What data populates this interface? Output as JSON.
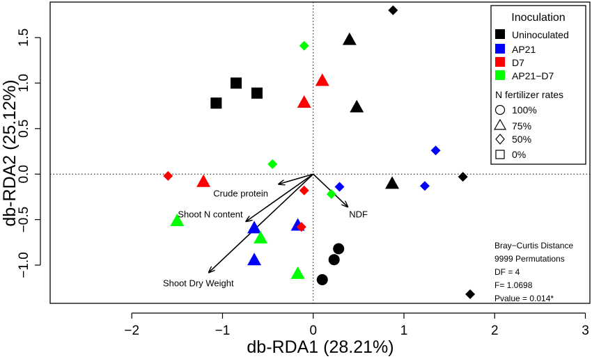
{
  "chart_data": {
    "type": "scatter",
    "xlabel": "db-RDA1 (28.21%)",
    "ylabel": "db-RDA2 (25.12%)",
    "xlim": [
      -2.9,
      3.05
    ],
    "ylim": [
      -1.42,
      1.89
    ],
    "xticks": [
      -2,
      -1,
      0,
      1,
      2,
      3
    ],
    "yticks": [
      -1.0,
      -0.5,
      0.0,
      0.5,
      1.0,
      1.5
    ],
    "ytick_labels": [
      "−1.0",
      "−0.5",
      "0.0",
      "0.5",
      "1.0",
      "1.5"
    ],
    "xtick_labels": [
      "−2",
      "−1",
      "0",
      "1",
      "2",
      "3"
    ],
    "reference_lines": {
      "x": 0,
      "y": 0,
      "style": "dotted"
    },
    "grid": false,
    "colors": {
      "Uninoculated": "#000000",
      "AP21": "#0000ff",
      "D7": "#ff0000",
      "AP21-D7": "#00ff00"
    },
    "points": [
      {
        "x": 0.88,
        "y": 1.8,
        "inoculation": "Uninoculated",
        "rate": "50%"
      },
      {
        "x": 0.4,
        "y": 1.48,
        "inoculation": "Uninoculated",
        "rate": "75%"
      },
      {
        "x": 0.48,
        "y": 0.74,
        "inoculation": "Uninoculated",
        "rate": "75%"
      },
      {
        "x": -0.85,
        "y": 1.0,
        "inoculation": "Uninoculated",
        "rate": "0%"
      },
      {
        "x": -0.62,
        "y": 0.89,
        "inoculation": "Uninoculated",
        "rate": "0%"
      },
      {
        "x": -1.07,
        "y": 0.78,
        "inoculation": "Uninoculated",
        "rate": "0%"
      },
      {
        "x": 0.87,
        "y": -0.1,
        "inoculation": "Uninoculated",
        "rate": "75%"
      },
      {
        "x": 1.65,
        "y": -0.03,
        "inoculation": "Uninoculated",
        "rate": "50%"
      },
      {
        "x": 1.73,
        "y": -1.32,
        "inoculation": "Uninoculated",
        "rate": "50%"
      },
      {
        "x": 0.28,
        "y": -0.82,
        "inoculation": "Uninoculated",
        "rate": "100%"
      },
      {
        "x": 0.23,
        "y": -0.94,
        "inoculation": "Uninoculated",
        "rate": "100%"
      },
      {
        "x": 0.1,
        "y": -1.16,
        "inoculation": "Uninoculated",
        "rate": "100%"
      },
      {
        "x": 1.35,
        "y": 0.26,
        "inoculation": "AP21",
        "rate": "50%"
      },
      {
        "x": 1.23,
        "y": -0.13,
        "inoculation": "AP21",
        "rate": "50%"
      },
      {
        "x": 0.29,
        "y": -0.14,
        "inoculation": "AP21",
        "rate": "50%"
      },
      {
        "x": -0.65,
        "y": -0.59,
        "inoculation": "AP21",
        "rate": "75%"
      },
      {
        "x": -0.65,
        "y": -0.94,
        "inoculation": "AP21",
        "rate": "75%"
      },
      {
        "x": -0.17,
        "y": -0.56,
        "inoculation": "AP21",
        "rate": "75%"
      },
      {
        "x": 0.1,
        "y": 1.03,
        "inoculation": "D7",
        "rate": "75%"
      },
      {
        "x": -0.1,
        "y": 0.79,
        "inoculation": "D7",
        "rate": "75%"
      },
      {
        "x": -1.21,
        "y": -0.08,
        "inoculation": "D7",
        "rate": "75%"
      },
      {
        "x": -1.6,
        "y": -0.02,
        "inoculation": "D7",
        "rate": "50%"
      },
      {
        "x": -0.1,
        "y": -0.18,
        "inoculation": "D7",
        "rate": "50%"
      },
      {
        "x": -0.13,
        "y": -0.58,
        "inoculation": "D7",
        "rate": "50%"
      },
      {
        "x": -0.1,
        "y": 1.41,
        "inoculation": "AP21-D7",
        "rate": "50%"
      },
      {
        "x": -0.45,
        "y": 0.11,
        "inoculation": "AP21-D7",
        "rate": "50%"
      },
      {
        "x": 0.2,
        "y": -0.22,
        "inoculation": "AP21-D7",
        "rate": "50%"
      },
      {
        "x": -1.5,
        "y": -0.51,
        "inoculation": "AP21-D7",
        "rate": "75%"
      },
      {
        "x": -0.58,
        "y": -0.7,
        "inoculation": "AP21-D7",
        "rate": "75%"
      },
      {
        "x": -0.17,
        "y": -1.09,
        "inoculation": "AP21-D7",
        "rate": "75%"
      }
    ],
    "vectors": [
      {
        "label": "Crude protein",
        "x": -0.38,
        "y": -0.11
      },
      {
        "label": "NDF",
        "x": 0.38,
        "y": -0.36
      },
      {
        "label": "Shoot N content",
        "x": -0.74,
        "y": -0.52
      },
      {
        "label": "Shoot Dry Weight",
        "x": -1.15,
        "y": -1.08
      }
    ],
    "legend": {
      "position": "top-right",
      "title": "Inoculation",
      "entries": [
        {
          "label": "Uninoculated",
          "color": "#000000"
        },
        {
          "label": "AP21",
          "color": "#0000ff"
        },
        {
          "label": "D7",
          "color": "#ff0000"
        },
        {
          "label": "AP21−D7",
          "color": "#00ff00"
        }
      ],
      "shape_title": "N  fertilizer rates",
      "shape_entries": [
        {
          "label": "100%",
          "shape": "circle"
        },
        {
          "label": "75%",
          "shape": "triangle"
        },
        {
          "label": "50%",
          "shape": "diamond"
        },
        {
          "label": "0%",
          "shape": "square"
        }
      ]
    },
    "annotations": [
      "Bray−Curtis Distance",
      "9999 Permutations",
      "DF = 4",
      "F= 1.0698",
      "Pvalue =  0.014*"
    ]
  }
}
